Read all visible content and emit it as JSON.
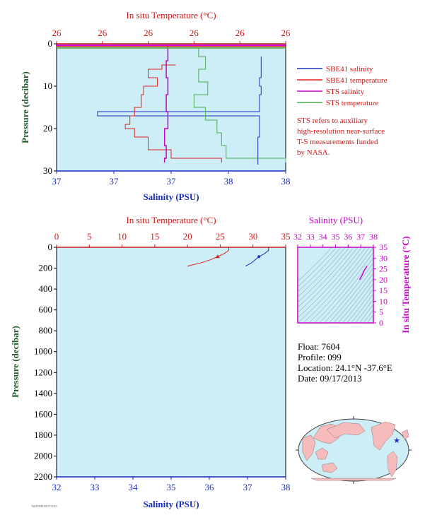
{
  "colors": {
    "plot_bg": "#cdeef6",
    "salinity": "#1a2fbf",
    "temperature": "#e02020",
    "sts_salinity": "#cc00cc",
    "sts_temperature": "#4caf50",
    "pressure_axis": "#1f5a2a",
    "sal_axis": "#1a2fbf",
    "temp_axis": "#d01818",
    "ts_axis": "#cc00cc"
  },
  "chart_data": [
    {
      "id": "near-surface",
      "type": "line",
      "x_bottom_label": "Salinity (PSU)",
      "x_top_label": "In situ Temperature (°C)",
      "ylabel": "Pressure (decibar)",
      "bottom_ticks": [
        "37",
        "37",
        "37",
        "38",
        "38"
      ],
      "top_ticks": [
        "26",
        "26",
        "26",
        "26",
        "26",
        "26"
      ],
      "y_ticks": [
        "0",
        "10",
        "20",
        "30"
      ],
      "xlim_salinity": [
        36.6,
        38.0
      ],
      "xlim_temperature": [
        25.9,
        26.9
      ],
      "ylim": [
        0,
        30
      ],
      "legend": {
        "placement": "right",
        "items": [
          {
            "name": "SBE41 salinity",
            "color": "#1a2fbf"
          },
          {
            "name": "SBE41 temperature",
            "color": "#e02020"
          },
          {
            "name": "STS salinity",
            "color": "#cc00cc"
          },
          {
            "name": "STS temperature",
            "color": "#4caf50"
          }
        ]
      },
      "note": [
        "STS refers to auxiliary",
        "high-resolution near-surface",
        "T-S measurements funded",
        "by NASA."
      ],
      "series": [
        {
          "name": "SBE41 salinity",
          "x": [
            37.85,
            37.85,
            37.84,
            37.85,
            37.84,
            37.84,
            36.85,
            37.84,
            37.84,
            37.83,
            37.83
          ],
          "y": [
            3,
            8,
            10,
            12,
            14,
            16,
            17,
            18,
            22,
            26,
            28.5
          ]
        },
        {
          "name": "SBE41 temperature",
          "x": [
            26.42,
            26.36,
            26.3,
            26.34,
            26.28,
            26.27,
            26.24,
            26.22,
            26.2,
            26.24,
            26.3,
            26.4,
            26.62
          ],
          "y": [
            5,
            6,
            8,
            10,
            12,
            15,
            17,
            19,
            20,
            22,
            25,
            27,
            28
          ]
        },
        {
          "name": "STS salinity",
          "x": [
            37.28,
            37.28,
            37.27,
            37.28,
            37.27,
            37.28,
            37.26,
            37.27,
            37.26
          ],
          "y": [
            0.5,
            4,
            8,
            12,
            16,
            20,
            24,
            27,
            28
          ]
        },
        {
          "name": "STS temperature",
          "x": [
            26.5,
            26.52,
            26.55,
            26.52,
            26.56,
            26.5,
            26.55,
            26.6,
            26.62,
            26.64,
            26.9
          ],
          "y": [
            1,
            3,
            6,
            9,
            12,
            15,
            18,
            21,
            24,
            27,
            28
          ]
        }
      ]
    },
    {
      "id": "full-profile",
      "type": "line",
      "x_bottom_label": "Salinity (PSU)",
      "x_top_label": "In situ Temperature (°C)",
      "ylabel": "Pressure (decibar)",
      "bottom_ticks": [
        "32",
        "33",
        "34",
        "35",
        "36",
        "37",
        "38"
      ],
      "top_ticks": [
        "0",
        "5",
        "10",
        "15",
        "20",
        "25",
        "30",
        "35"
      ],
      "y_ticks": [
        "0",
        "200",
        "400",
        "600",
        "800",
        "1000",
        "1200",
        "1400",
        "1600",
        "1800",
        "2000",
        "2200"
      ],
      "xlim_salinity": [
        32,
        38
      ],
      "xlim_temperature": [
        0,
        35
      ],
      "ylim": [
        0,
        2200
      ],
      "series": [
        {
          "name": "Salinity",
          "x": [
            37.55,
            37.55,
            37.45,
            37.3,
            37.2,
            37.1,
            36.95
          ],
          "y": [
            0,
            30,
            60,
            90,
            120,
            150,
            180
          ]
        },
        {
          "name": "Temperature",
          "x": [
            26.3,
            26.3,
            25.6,
            24.6,
            23.5,
            22.0,
            20.0
          ],
          "y": [
            0,
            30,
            60,
            90,
            120,
            150,
            180
          ]
        }
      ]
    },
    {
      "id": "ts-diagram",
      "type": "scatter",
      "x_top_label": "Salinity (PSU)",
      "y_right_label": "In situ Temperature (°C)",
      "x_ticks": [
        "32",
        "33",
        "34",
        "35",
        "36",
        "37",
        "38"
      ],
      "y_ticks": [
        "0",
        "5",
        "10",
        "15",
        "20",
        "25",
        "30",
        "35"
      ],
      "xlim": [
        32,
        38
      ],
      "ylim": [
        0,
        35
      ],
      "series": [
        {
          "name": "T-S",
          "x": [
            36.9,
            37.1,
            37.3,
            37.5
          ],
          "y": [
            20,
            22,
            24.5,
            26.3
          ]
        }
      ]
    }
  ],
  "float_info": {
    "float": "Float:  7604",
    "profile": "Profile:  099",
    "location": "Location:  24.1°N  -37.6°E",
    "date": "Date:  09/17/2013"
  },
  "map": {
    "marker_lat": 24.1,
    "marker_lon": -37.6
  },
  "footer_small": "7604 P099 09/17/2013"
}
